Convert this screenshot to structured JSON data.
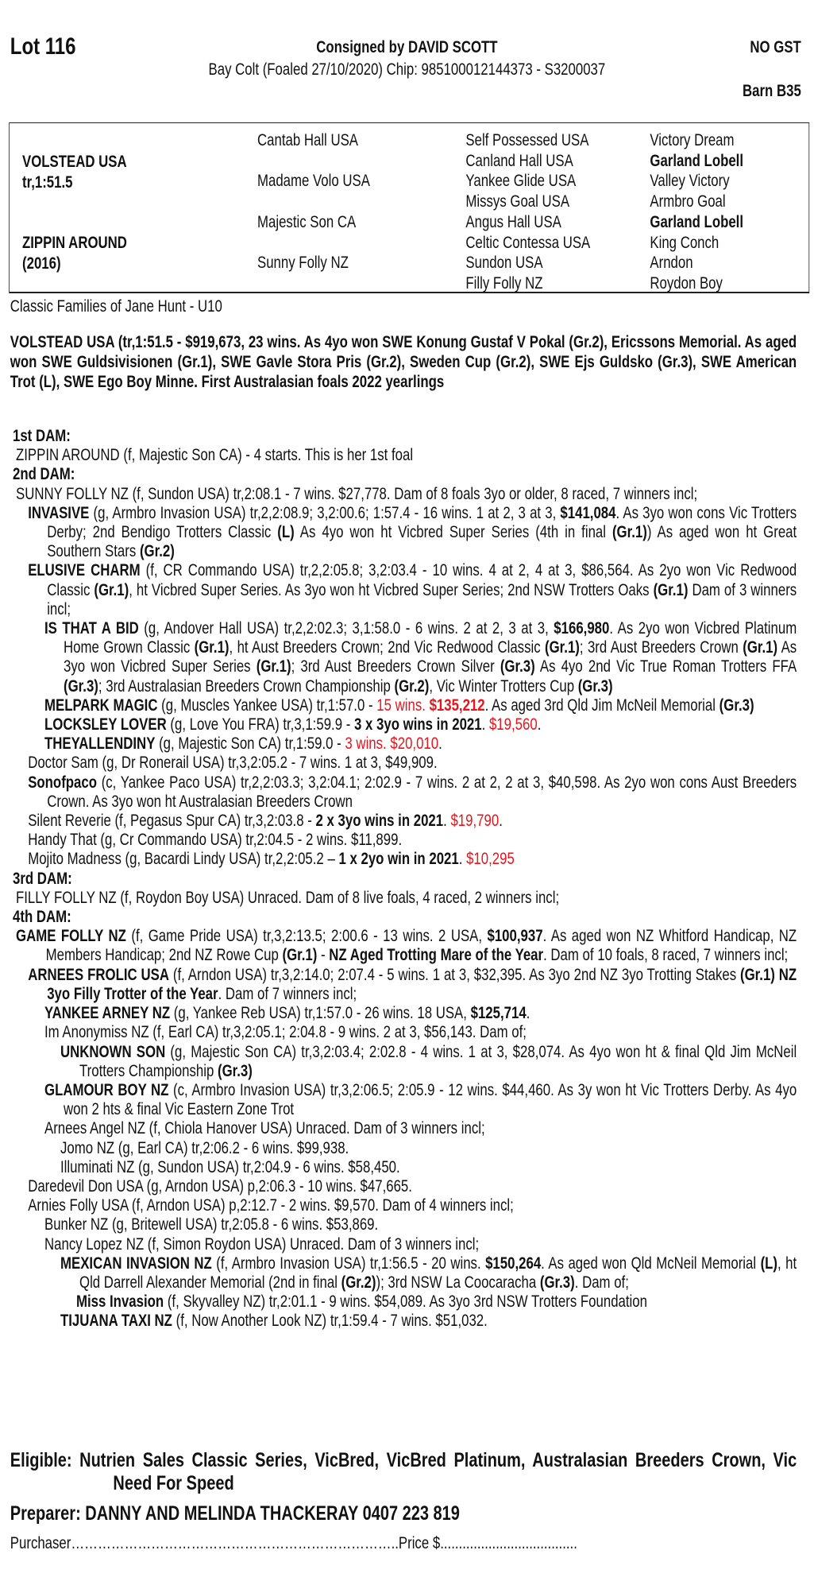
{
  "header": {
    "lot": "Lot 116",
    "consigned": "Consigned by DAVID SCOTT",
    "gst": "NO GST",
    "subline": "Bay Colt (Foaled 27/10/2020) Chip: 985100012144373 - S3200037",
    "barn": "Barn B35"
  },
  "pedigree": {
    "sire": "VOLSTEAD USA",
    "sire_time": "tr,1:51.5",
    "dam": "ZIPPIN AROUND",
    "dam_year": "(2016)",
    "gen2": [
      "Cantab Hall USA",
      "Madame Volo USA",
      "Majestic Son CA",
      "Sunny Folly NZ"
    ],
    "gen3": [
      "Self Possessed USA",
      "Canland Hall USA",
      "Yankee Glide USA",
      "Missys Goal USA",
      "Angus Hall USA",
      "Celtic Contessa USA",
      "Sundon USA",
      "Filly Folly NZ"
    ],
    "gen4": [
      "Victory Dream",
      "Garland Lobell",
      "Valley Victory",
      "Armbro Goal",
      "Garland Lobell",
      "King Conch",
      "Arndon",
      "Roydon Boy"
    ]
  },
  "family": "Classic Families of Jane Hunt - U10",
  "sire_description": "VOLSTEAD USA (tr,1:51.5 - $919,673, 23 wins. As 4yo won SWE Konung Gustaf V Pokal (Gr.2), Ericssons Memorial. As aged won SWE Guldsivisionen (Gr.1), SWE Gavle Stora Pris (Gr.2), Sweden Cup (Gr.2), SWE Ejs Guldsko (Gr.3), SWE American Trot (L), SWE Ego Boy Minne. First Australasian foals 2022 yearlings",
  "colors": {
    "text": "#111111",
    "highlight_red": "#e8141b"
  },
  "entries": [
    {
      "h": "1st DAM:"
    },
    {
      "lv": 0,
      "s": [
        [
          "ZIPPIN AROUND (f, Majestic Son CA) - 4 starts. This is her 1st foal",
          ""
        ]
      ]
    },
    {
      "h": "2nd DAM:"
    },
    {
      "lv": 0,
      "s": [
        [
          "SUNNY FOLLY NZ (f, Sundon USA) tr,2:08.1 - 7 wins. $27,778. Dam of 8 foals 3yo or older, 8 raced, 7 winners incl;",
          ""
        ]
      ]
    },
    {
      "lv": 1,
      "s": [
        [
          "INVASIVE",
          "b"
        ],
        [
          " (g, Armbro Invasion USA) tr,2,2:08.9; 3,2:00.6; 1:57.4 - 16 wins. 1 at 2, 3 at 3, ",
          ""
        ],
        [
          "$141,084",
          "b"
        ],
        [
          ". As 3yo won cons Vic Trotters Derby; 2nd Bendigo Trotters Classic ",
          ""
        ],
        [
          "(L)",
          "b"
        ],
        [
          " As 4yo won ht Vicbred Super Series (4th in final ",
          ""
        ],
        [
          "(Gr.1)",
          "b"
        ],
        [
          ") As aged won ht Great Southern Stars ",
          ""
        ],
        [
          "(Gr.2)",
          "b"
        ]
      ]
    },
    {
      "lv": 1,
      "s": [
        [
          "ELUSIVE CHARM",
          "b"
        ],
        [
          " (f, CR Commando USA) tr,2,2:05.8; 3,2:03.4 - 10 wins. 4 at 2, 4 at 3, $86,564. As 2yo won Vic Redwood Classic ",
          ""
        ],
        [
          "(Gr.1)",
          "b"
        ],
        [
          ", ht Vicbred Super Series. As 3yo won ht Vicbred Super Series; 2nd NSW Trotters Oaks ",
          ""
        ],
        [
          "(Gr.1)",
          "b"
        ],
        [
          " Dam of 3 winners incl;",
          ""
        ]
      ]
    },
    {
      "lv": 2,
      "s": [
        [
          "IS THAT A BID",
          "b"
        ],
        [
          " (g, Andover Hall USA) tr,2,2:02.3; 3,1:58.0 - 6 wins. 2 at 2, 3 at 3, ",
          ""
        ],
        [
          "$166,980",
          "b"
        ],
        [
          ". As 2yo won Vicbred Platinum Home Grown Classic ",
          ""
        ],
        [
          "(Gr.1)",
          "b"
        ],
        [
          ", ht Aust Breeders Crown; 2nd Vic Redwood Classic ",
          ""
        ],
        [
          "(Gr.1)",
          "b"
        ],
        [
          "; 3rd Aust Breeders Crown ",
          ""
        ],
        [
          "(Gr.1)",
          "b"
        ],
        [
          " As 3yo won Vicbred Super Series ",
          ""
        ],
        [
          "(Gr.1)",
          "b"
        ],
        [
          "; 3rd Aust Breeders Crown Silver ",
          ""
        ],
        [
          "(Gr.3)",
          "b"
        ],
        [
          " As 4yo 2nd Vic True Roman Trotters FFA ",
          ""
        ],
        [
          "(Gr.3)",
          "b"
        ],
        [
          "; 3rd Australasian Breeders Crown Championship ",
          ""
        ],
        [
          "(Gr.2)",
          "b"
        ],
        [
          ", Vic Winter Trotters Cup ",
          ""
        ],
        [
          "(Gr.3)",
          "b"
        ]
      ]
    },
    {
      "lv": 2,
      "s": [
        [
          "MELPARK MAGIC",
          "b"
        ],
        [
          " (g, Muscles Yankee USA) tr,1:57.0 - ",
          ""
        ],
        [
          "15 wins. ",
          "r"
        ],
        [
          "$135,212",
          "b r"
        ],
        [
          ". As aged 3rd Qld Jim McNeil Memorial ",
          ""
        ],
        [
          "(Gr.3)",
          "b"
        ]
      ]
    },
    {
      "lv": 2,
      "s": [
        [
          "LOCKSLEY LOVER",
          "b"
        ],
        [
          " (g, Love You FRA) tr,3,1:59.9 - ",
          ""
        ],
        [
          "3 x 3yo wins in 2021",
          "b"
        ],
        [
          ". ",
          ""
        ],
        [
          "$19,560",
          "r"
        ],
        [
          ".",
          ""
        ]
      ]
    },
    {
      "lv": 2,
      "s": [
        [
          "THEYALLENDINY",
          "b"
        ],
        [
          " (g, Majestic Son CA) tr,1:59.0 - ",
          ""
        ],
        [
          "3 wins. $20,010",
          "r"
        ],
        [
          ".",
          ""
        ]
      ]
    },
    {
      "lv": 1,
      "s": [
        [
          "Doctor Sam (g, Dr Ronerail USA) tr,3,2:05.2 - 7 wins. 1 at 3, $49,909.",
          ""
        ]
      ]
    },
    {
      "lv": 1,
      "s": [
        [
          "Sonofpaco",
          "b"
        ],
        [
          " (c, Yankee Paco USA) tr,2,2:03.3; 3,2:04.1; 2:02.9 - 7 wins. 2 at 2, 2 at 3, $40,598. As 2yo won cons Aust Breeders Crown. As 3yo won ht Australasian Breeders Crown",
          ""
        ]
      ]
    },
    {
      "lv": 1,
      "s": [
        [
          "Silent Reverie (f, Pegasus Spur CA) tr,3,2:03.8 - ",
          ""
        ],
        [
          "2 x 3yo wins in 2021",
          "b"
        ],
        [
          ". ",
          ""
        ],
        [
          "$19,790",
          "r"
        ],
        [
          ".",
          ""
        ]
      ]
    },
    {
      "lv": 1,
      "s": [
        [
          "Handy That (g, Cr Commando USA) tr,2:04.5 - 2 wins. $11,899.",
          ""
        ]
      ]
    },
    {
      "lv": 1,
      "s": [
        [
          "Mojito Madness (g, Bacardi Lindy USA) tr,2,2:05.2 – ",
          ""
        ],
        [
          "1 x 2yo win in 2021",
          "b"
        ],
        [
          ". ",
          ""
        ],
        [
          "$10,295",
          "r"
        ]
      ]
    },
    {
      "h": "3rd DAM:"
    },
    {
      "lv": 0,
      "s": [
        [
          "FILLY FOLLY NZ (f, Roydon Boy USA) Unraced. Dam of 8 live foals, 4 raced, 2 winners incl;",
          ""
        ]
      ]
    },
    {
      "h": "4th DAM:"
    },
    {
      "lv": 0,
      "s": [
        [
          "GAME FOLLY NZ",
          "b"
        ],
        [
          " (f, Game Pride USA) tr,3,2:13.5; 2:00.6 - 13 wins. 2 USA, ",
          ""
        ],
        [
          "$100,937",
          "b"
        ],
        [
          ". As aged won NZ Whitford Handicap, NZ Members Handicap; 2nd NZ Rowe Cup ",
          ""
        ],
        [
          "(Gr.1)",
          "b"
        ],
        [
          " - ",
          ""
        ],
        [
          "NZ Aged Trotting Mare of the Year",
          "b"
        ],
        [
          ". Dam of 10 foals, 8 raced, 7 winners incl;",
          ""
        ]
      ]
    },
    {
      "lv": 1,
      "s": [
        [
          "ARNEES FROLIC USA",
          "b"
        ],
        [
          " (f, Arndon USA) tr,3,2:14.0; 2:07.4 - 5 wins. 1 at 3, $32,395. As 3yo 2nd NZ 3yo Trotting Stakes ",
          ""
        ],
        [
          "(Gr.1) NZ 3yo Filly Trotter of the Year",
          "b"
        ],
        [
          ". Dam of 7 winners incl;",
          ""
        ]
      ]
    },
    {
      "lv": 2,
      "s": [
        [
          "YANKEE ARNEY NZ",
          "b"
        ],
        [
          " (g, Yankee Reb USA) tr,1:57.0 - 26 wins. 18 USA, ",
          ""
        ],
        [
          "$125,714",
          "b"
        ],
        [
          ".",
          ""
        ]
      ]
    },
    {
      "lv": 2,
      "s": [
        [
          "Im Anonymiss NZ (f, Earl CA) tr,3,2:05.1; 2:04.8 - 9 wins. 2 at 3, $56,143. Dam of;",
          ""
        ]
      ]
    },
    {
      "lv": 3,
      "s": [
        [
          "UNKNOWN SON",
          "b"
        ],
        [
          " (g, Majestic Son CA) tr,3,2:03.4; 2:02.8 - 4 wins. 1 at 3, $28,074. As 4yo won ht & final Qld Jim McNeil Trotters Championship ",
          ""
        ],
        [
          "(Gr.3)",
          "b"
        ]
      ]
    },
    {
      "lv": 2,
      "s": [
        [
          "GLAMOUR BOY NZ",
          "b"
        ],
        [
          " (c, Armbro Invasion USA) tr,3,2:06.5; 2:05.9 - 12 wins. $44,460. As 3y won ht Vic Trotters Derby. As 4yo won 2 hts & final Vic Eastern Zone Trot",
          ""
        ]
      ]
    },
    {
      "lv": 2,
      "s": [
        [
          "Arnees Angel NZ (f, Chiola Hanover USA) Unraced. Dam of 3 winners incl;",
          ""
        ]
      ]
    },
    {
      "lv": 3,
      "s": [
        [
          "Jomo NZ (g, Earl CA) tr,2:06.2 - 6 wins. $99,938.",
          ""
        ]
      ]
    },
    {
      "lv": 3,
      "s": [
        [
          "Illuminati NZ (g, Sundon USA) tr,2:04.9 - 6 wins. $58,450.",
          ""
        ]
      ]
    },
    {
      "lv": 1,
      "s": [
        [
          "Daredevil Don USA (g, Arndon USA) p,2:06.3 - 10 wins. $47,665.",
          ""
        ]
      ]
    },
    {
      "lv": 1,
      "s": [
        [
          "Arnies Folly USA (f, Arndon USA) p,2:12.7 - 2 wins. $9,570. Dam of 4 winners incl;",
          ""
        ]
      ]
    },
    {
      "lv": 2,
      "s": [
        [
          "Bunker NZ (g, Britewell USA) tr,2:05.8 - 6 wins. $53,869.",
          ""
        ]
      ]
    },
    {
      "lv": 2,
      "s": [
        [
          "Nancy Lopez NZ (f, Simon Roydon USA) Unraced. Dam of 3 winners incl;",
          ""
        ]
      ]
    },
    {
      "lv": 3,
      "s": [
        [
          "MEXICAN INVASION NZ",
          "b"
        ],
        [
          " (f, Armbro Invasion USA) tr,1:56.5 - 20 wins. ",
          ""
        ],
        [
          "$150,264",
          "b"
        ],
        [
          ". As aged won Qld McNeil Memorial ",
          ""
        ],
        [
          "(L)",
          "b"
        ],
        [
          ", ht Qld Darrell Alexander Memorial (2nd in final ",
          ""
        ],
        [
          "(Gr.2)",
          "b"
        ],
        [
          "); 3rd NSW La Coocaracha ",
          ""
        ],
        [
          "(Gr.3)",
          "b"
        ],
        [
          ". Dam of;",
          ""
        ]
      ]
    },
    {
      "lv": 4,
      "s": [
        [
          "Miss Invasion",
          "b"
        ],
        [
          " (f, Skyvalley NZ) tr,2:01.1 - 9 wins. $54,089. As 3yo 3rd NSW Trotters Foundation",
          ""
        ]
      ]
    },
    {
      "lv": 3,
      "s": [
        [
          "TIJUANA TAXI NZ",
          "b"
        ],
        [
          " (f, Now Another Look NZ) tr,1:59.4 - 7 wins. $51,032.",
          ""
        ]
      ]
    }
  ],
  "footer": {
    "eligible": "Eligible: Nutrien Sales Classic Series, VicBred, VicBred Platinum, Australasian Breeders Crown, Vic Need For Speed",
    "preparer": "Preparer: DANNY AND MELINDA THACKERAY 0407 223 819",
    "purchaser": "Purchaser………………………………………………………………..Price $....................................."
  }
}
